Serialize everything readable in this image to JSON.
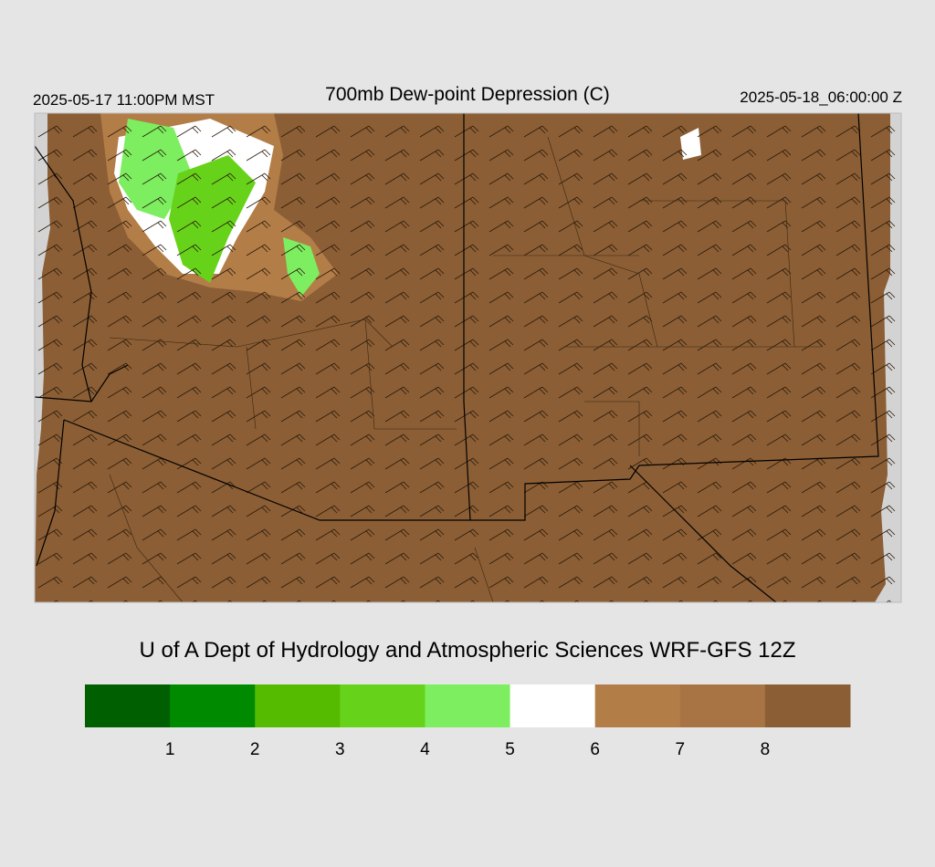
{
  "header": {
    "left": "2025-05-17 11:00PM MST",
    "title": "700mb Dew-point Depression (C)",
    "right": "2025-05-18_06:00:00 Z"
  },
  "footer": {
    "credit": "U of A Dept of Hydrology and Atmospheric Sciences WRF-GFS 12Z"
  },
  "colorbar": {
    "colors": [
      "#005f00",
      "#008a00",
      "#55bb00",
      "#66d31a",
      "#7cee60",
      "#ffffff",
      "#b37d48",
      "#a87444",
      "#8b5e35"
    ],
    "ticks": [
      1,
      2,
      3,
      4,
      5,
      6,
      7,
      8
    ]
  }
}
